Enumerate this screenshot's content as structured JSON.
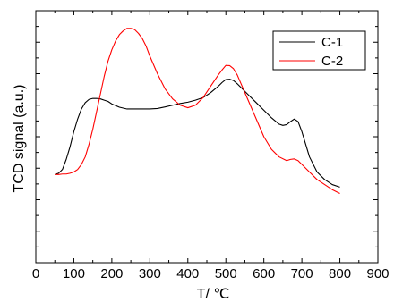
{
  "chart_data": {
    "type": "line",
    "xlabel": "T/ ℃",
    "ylabel": "TCD signal (a.u.)",
    "xlim": [
      0,
      900
    ],
    "xticks": [
      0,
      100,
      200,
      300,
      400,
      500,
      600,
      700,
      800,
      900
    ],
    "y_tick_labels": "none",
    "ylim": [
      0,
      1
    ],
    "grid": false,
    "legend_position": "top-right",
    "series": [
      {
        "name": "C-1",
        "color": "#000000",
        "x": [
          50,
          60,
          70,
          80,
          90,
          100,
          110,
          120,
          130,
          140,
          150,
          160,
          170,
          180,
          190,
          200,
          220,
          240,
          260,
          280,
          300,
          320,
          340,
          360,
          380,
          400,
          420,
          440,
          460,
          480,
          490,
          500,
          510,
          520,
          530,
          540,
          560,
          580,
          600,
          620,
          640,
          650,
          660,
          670,
          680,
          690,
          700,
          710,
          720,
          740,
          760,
          780,
          800
        ],
        "y": [
          0.35,
          0.355,
          0.37,
          0.41,
          0.46,
          0.52,
          0.57,
          0.61,
          0.635,
          0.648,
          0.652,
          0.652,
          0.65,
          0.645,
          0.64,
          0.63,
          0.617,
          0.61,
          0.61,
          0.61,
          0.61,
          0.612,
          0.618,
          0.625,
          0.632,
          0.637,
          0.645,
          0.655,
          0.675,
          0.7,
          0.715,
          0.727,
          0.728,
          0.723,
          0.71,
          0.695,
          0.665,
          0.635,
          0.605,
          0.575,
          0.55,
          0.545,
          0.548,
          0.56,
          0.57,
          0.56,
          0.52,
          0.47,
          0.42,
          0.36,
          0.33,
          0.31,
          0.3
        ]
      },
      {
        "name": "C-2",
        "color": "#ff0000",
        "x": [
          50,
          60,
          70,
          80,
          90,
          100,
          110,
          120,
          130,
          140,
          150,
          160,
          170,
          180,
          190,
          200,
          210,
          220,
          230,
          240,
          250,
          260,
          270,
          280,
          290,
          300,
          320,
          340,
          360,
          380,
          400,
          420,
          440,
          460,
          480,
          490,
          500,
          510,
          520,
          530,
          540,
          560,
          580,
          600,
          620,
          640,
          660,
          670,
          680,
          690,
          700,
          720,
          740,
          760,
          780,
          800
        ],
        "y": [
          0.35,
          0.35,
          0.352,
          0.352,
          0.355,
          0.36,
          0.37,
          0.39,
          0.42,
          0.47,
          0.53,
          0.6,
          0.67,
          0.74,
          0.8,
          0.845,
          0.88,
          0.905,
          0.92,
          0.93,
          0.93,
          0.925,
          0.91,
          0.89,
          0.86,
          0.82,
          0.75,
          0.69,
          0.65,
          0.625,
          0.615,
          0.625,
          0.655,
          0.7,
          0.745,
          0.765,
          0.783,
          0.782,
          0.77,
          0.745,
          0.71,
          0.64,
          0.57,
          0.5,
          0.45,
          0.42,
          0.405,
          0.41,
          0.412,
          0.405,
          0.39,
          0.36,
          0.33,
          0.31,
          0.29,
          0.275
        ]
      }
    ]
  }
}
